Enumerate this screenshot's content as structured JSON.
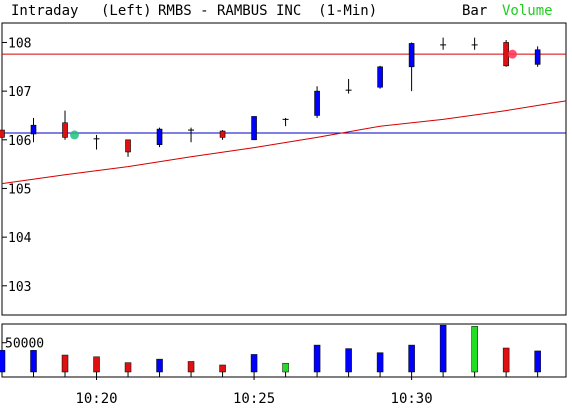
{
  "header": {
    "mode": "Intraday",
    "scale_side": "(Left)",
    "title": "RMBS - RAMBUS INC  (1-Min)",
    "bar_label": "Bar",
    "volume_label": "Volume"
  },
  "colors": {
    "up": "#0000ff",
    "down": "#dd1111",
    "doji": "#000000",
    "resistance": "#d40000",
    "support": "#0000c8",
    "moving_average": "#d40000",
    "volume_up": "#0000ff",
    "volume_down": "#dd1111",
    "volume_highlight": "#22dd22",
    "volume_label": "#22cc22",
    "marker_green": "#22c080",
    "marker_red": "#ff3355"
  },
  "chart_data": [
    {
      "type": "candlestick",
      "name": "price",
      "ylim": [
        102.4,
        108.4
      ],
      "yticks": [
        103,
        104,
        105,
        106,
        107,
        108
      ],
      "xlim": [
        17,
        34.9
      ],
      "xtick_labels": [
        {
          "x": 20,
          "label": "10:20"
        },
        {
          "x": 25,
          "label": "10:25"
        },
        {
          "x": 30,
          "label": "10:30"
        }
      ],
      "horizontal_lines": [
        {
          "name": "resistance",
          "y": 107.76
        },
        {
          "name": "support",
          "y": 106.14
        }
      ],
      "moving_average": {
        "x": [
          17,
          19,
          21,
          23,
          25,
          27,
          29,
          31,
          33,
          34.9
        ],
        "y": [
          105.1,
          105.28,
          105.45,
          105.65,
          105.84,
          106.05,
          106.28,
          106.42,
          106.6,
          106.8
        ]
      },
      "markers": [
        {
          "x": 19.3,
          "y": 106.1,
          "color": "green"
        },
        {
          "x": 33.2,
          "y": 107.76,
          "color": "red"
        }
      ],
      "bars": [
        {
          "x": 17,
          "open": 106.2,
          "high": 106.3,
          "low": 105.95,
          "close": 106.05,
          "color": "down"
        },
        {
          "x": 18,
          "open": 106.12,
          "high": 106.45,
          "low": 105.95,
          "close": 106.3,
          "color": "up"
        },
        {
          "x": 19,
          "open": 106.35,
          "high": 106.6,
          "low": 106.0,
          "close": 106.05,
          "color": "down"
        },
        {
          "x": 20,
          "open": 106.05,
          "high": 106.1,
          "low": 105.8,
          "close": 106.02,
          "color": "doji"
        },
        {
          "x": 21,
          "open": 106.0,
          "high": 106.0,
          "low": 105.65,
          "close": 105.75,
          "color": "down"
        },
        {
          "x": 22,
          "open": 105.9,
          "high": 106.25,
          "low": 105.85,
          "close": 106.22,
          "color": "up"
        },
        {
          "x": 23,
          "open": 106.2,
          "high": 106.25,
          "low": 105.95,
          "close": 106.2,
          "color": "doji"
        },
        {
          "x": 24,
          "open": 106.18,
          "high": 106.2,
          "low": 106.0,
          "close": 106.05,
          "color": "down"
        },
        {
          "x": 25,
          "open": 106.0,
          "high": 106.48,
          "low": 106.0,
          "close": 106.48,
          "color": "up"
        },
        {
          "x": 26,
          "open": 106.42,
          "high": 106.45,
          "low": 106.28,
          "close": 106.42,
          "color": "doji"
        },
        {
          "x": 27,
          "open": 106.5,
          "high": 107.1,
          "low": 106.45,
          "close": 107.0,
          "color": "up"
        },
        {
          "x": 28,
          "open": 107.0,
          "high": 107.25,
          "low": 106.95,
          "close": 107.02,
          "color": "doji"
        },
        {
          "x": 29,
          "open": 107.08,
          "high": 107.52,
          "low": 107.05,
          "close": 107.5,
          "color": "up"
        },
        {
          "x": 30,
          "open": 107.5,
          "high": 108.0,
          "low": 107.0,
          "close": 107.98,
          "color": "up"
        },
        {
          "x": 31,
          "open": 107.95,
          "high": 108.1,
          "low": 107.85,
          "close": 107.95,
          "color": "doji"
        },
        {
          "x": 32,
          "open": 107.95,
          "high": 108.1,
          "low": 107.85,
          "close": 107.95,
          "color": "doji"
        },
        {
          "x": 33,
          "open": 108.0,
          "high": 108.05,
          "low": 107.5,
          "close": 107.52,
          "color": "down"
        },
        {
          "x": 34,
          "open": 107.55,
          "high": 107.92,
          "low": 107.5,
          "close": 107.85,
          "color": "up"
        }
      ]
    },
    {
      "type": "bar",
      "name": "volume",
      "ylim": [
        0,
        82000
      ],
      "yticks": [
        50000
      ],
      "bars": [
        {
          "x": 17,
          "value": 37000,
          "color": "volume_up"
        },
        {
          "x": 18,
          "value": 37000,
          "color": "volume_up"
        },
        {
          "x": 19,
          "value": 29000,
          "color": "volume_down"
        },
        {
          "x": 20,
          "value": 26000,
          "color": "volume_down"
        },
        {
          "x": 21,
          "value": 16000,
          "color": "volume_down"
        },
        {
          "x": 22,
          "value": 22000,
          "color": "volume_up"
        },
        {
          "x": 23,
          "value": 18000,
          "color": "volume_down"
        },
        {
          "x": 24,
          "value": 12000,
          "color": "volume_down"
        },
        {
          "x": 25,
          "value": 30000,
          "color": "volume_up"
        },
        {
          "x": 26,
          "value": 15000,
          "color": "volume_highlight"
        },
        {
          "x": 27,
          "value": 46000,
          "color": "volume_up"
        },
        {
          "x": 28,
          "value": 40000,
          "color": "volume_up"
        },
        {
          "x": 29,
          "value": 33000,
          "color": "volume_up"
        },
        {
          "x": 30,
          "value": 46000,
          "color": "volume_up"
        },
        {
          "x": 31,
          "value": 80000,
          "color": "volume_up"
        },
        {
          "x": 32,
          "value": 78000,
          "color": "volume_highlight"
        },
        {
          "x": 33,
          "value": 41000,
          "color": "volume_down"
        },
        {
          "x": 34,
          "value": 36000,
          "color": "volume_up"
        }
      ]
    }
  ]
}
